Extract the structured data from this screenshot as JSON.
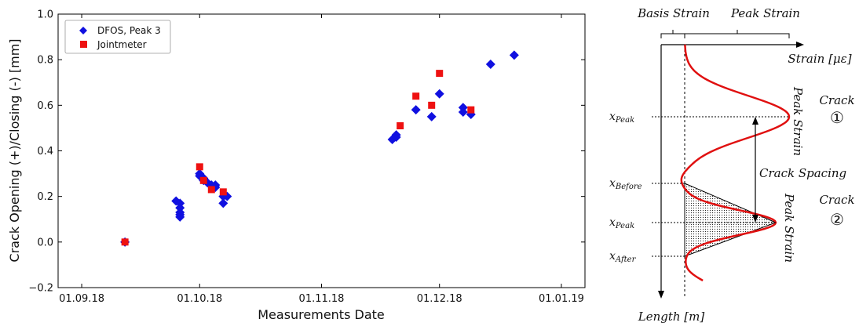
{
  "chart_data": {
    "type": "scatter",
    "xlabel": "Measurements Date",
    "ylabel": "Crack Opening (+)/Closing (-)  [mm]",
    "x_tick_labels": [
      "01.09.18",
      "01.10.18",
      "01.11.18",
      "01.12.18",
      "01.01.19"
    ],
    "x_ticks": [
      "2018-09-01",
      "2018-10-01",
      "2018-11-01",
      "2018-12-01",
      "2019-01-01"
    ],
    "xlim": [
      "2018-08-26",
      "2019-01-07"
    ],
    "ylim": [
      -0.2,
      1.0
    ],
    "y_ticks": [
      -0.2,
      0.0,
      0.2,
      0.4,
      0.6,
      0.8,
      1.0
    ],
    "y_tick_labels": [
      "−0.2",
      "0.0",
      "0.2",
      "0.4",
      "0.6",
      "0.8",
      "1.0"
    ],
    "grid": false,
    "legend_position": "top-left",
    "series": [
      {
        "name": "DFOS, Peak 3",
        "marker": "diamond",
        "color": "#1010e0",
        "points": [
          [
            "2018-09-12",
            0.0
          ],
          [
            "2018-09-25",
            0.18
          ],
          [
            "2018-09-26",
            0.17
          ],
          [
            "2018-09-26",
            0.15
          ],
          [
            "2018-09-26",
            0.13
          ],
          [
            "2018-09-26",
            0.12
          ],
          [
            "2018-09-26",
            0.11
          ],
          [
            "2018-10-01",
            0.3
          ],
          [
            "2018-10-01",
            0.29
          ],
          [
            "2018-10-02",
            0.28
          ],
          [
            "2018-10-02",
            0.27
          ],
          [
            "2018-10-03",
            0.26
          ],
          [
            "2018-10-04",
            0.25
          ],
          [
            "2018-10-05",
            0.25
          ],
          [
            "2018-10-05",
            0.24
          ],
          [
            "2018-10-07",
            0.2
          ],
          [
            "2018-10-08",
            0.2
          ],
          [
            "2018-10-07",
            0.17
          ],
          [
            "2018-11-19",
            0.45
          ],
          [
            "2018-11-20",
            0.46
          ],
          [
            "2018-11-20",
            0.47
          ],
          [
            "2018-11-25",
            0.58
          ],
          [
            "2018-11-29",
            0.55
          ],
          [
            "2018-12-01",
            0.65
          ],
          [
            "2018-12-07",
            0.59
          ],
          [
            "2018-12-07",
            0.57
          ],
          [
            "2018-12-09",
            0.56
          ],
          [
            "2018-12-14",
            0.78
          ],
          [
            "2018-12-20",
            0.82
          ]
        ]
      },
      {
        "name": "Jointmeter",
        "marker": "square",
        "color": "#ee1111",
        "points": [
          [
            "2018-09-12",
            0.0
          ],
          [
            "2018-10-01",
            0.33
          ],
          [
            "2018-10-02",
            0.27
          ],
          [
            "2018-10-04",
            0.23
          ],
          [
            "2018-10-07",
            0.22
          ],
          [
            "2018-11-21",
            0.51
          ],
          [
            "2018-11-25",
            0.64
          ],
          [
            "2018-11-29",
            0.6
          ],
          [
            "2018-12-01",
            0.74
          ],
          [
            "2018-12-09",
            0.58
          ]
        ]
      }
    ]
  },
  "diagram": {
    "basis_strain": "Basis Strain",
    "peak_strain_top": "Peak Strain",
    "strain_axis_label": "Strain [με]",
    "length_axis_label": "Length [m]",
    "x_peak_1": "x",
    "x_peak_1_sub": "Peak",
    "x_before": "x",
    "x_before_sub": "Before",
    "x_peak_2": "x",
    "x_peak_2_sub": "Peak",
    "x_after": "x",
    "x_after_sub": "After",
    "peak_strain_1": "Peak Strain",
    "peak_strain_2": "Peak Strain",
    "crack_spacing": "Crack Spacing",
    "crack_1": "Crack",
    "crack_1_num": "①",
    "crack_2": "Crack",
    "crack_2_num": "②",
    "curve_color": "#e01010"
  }
}
